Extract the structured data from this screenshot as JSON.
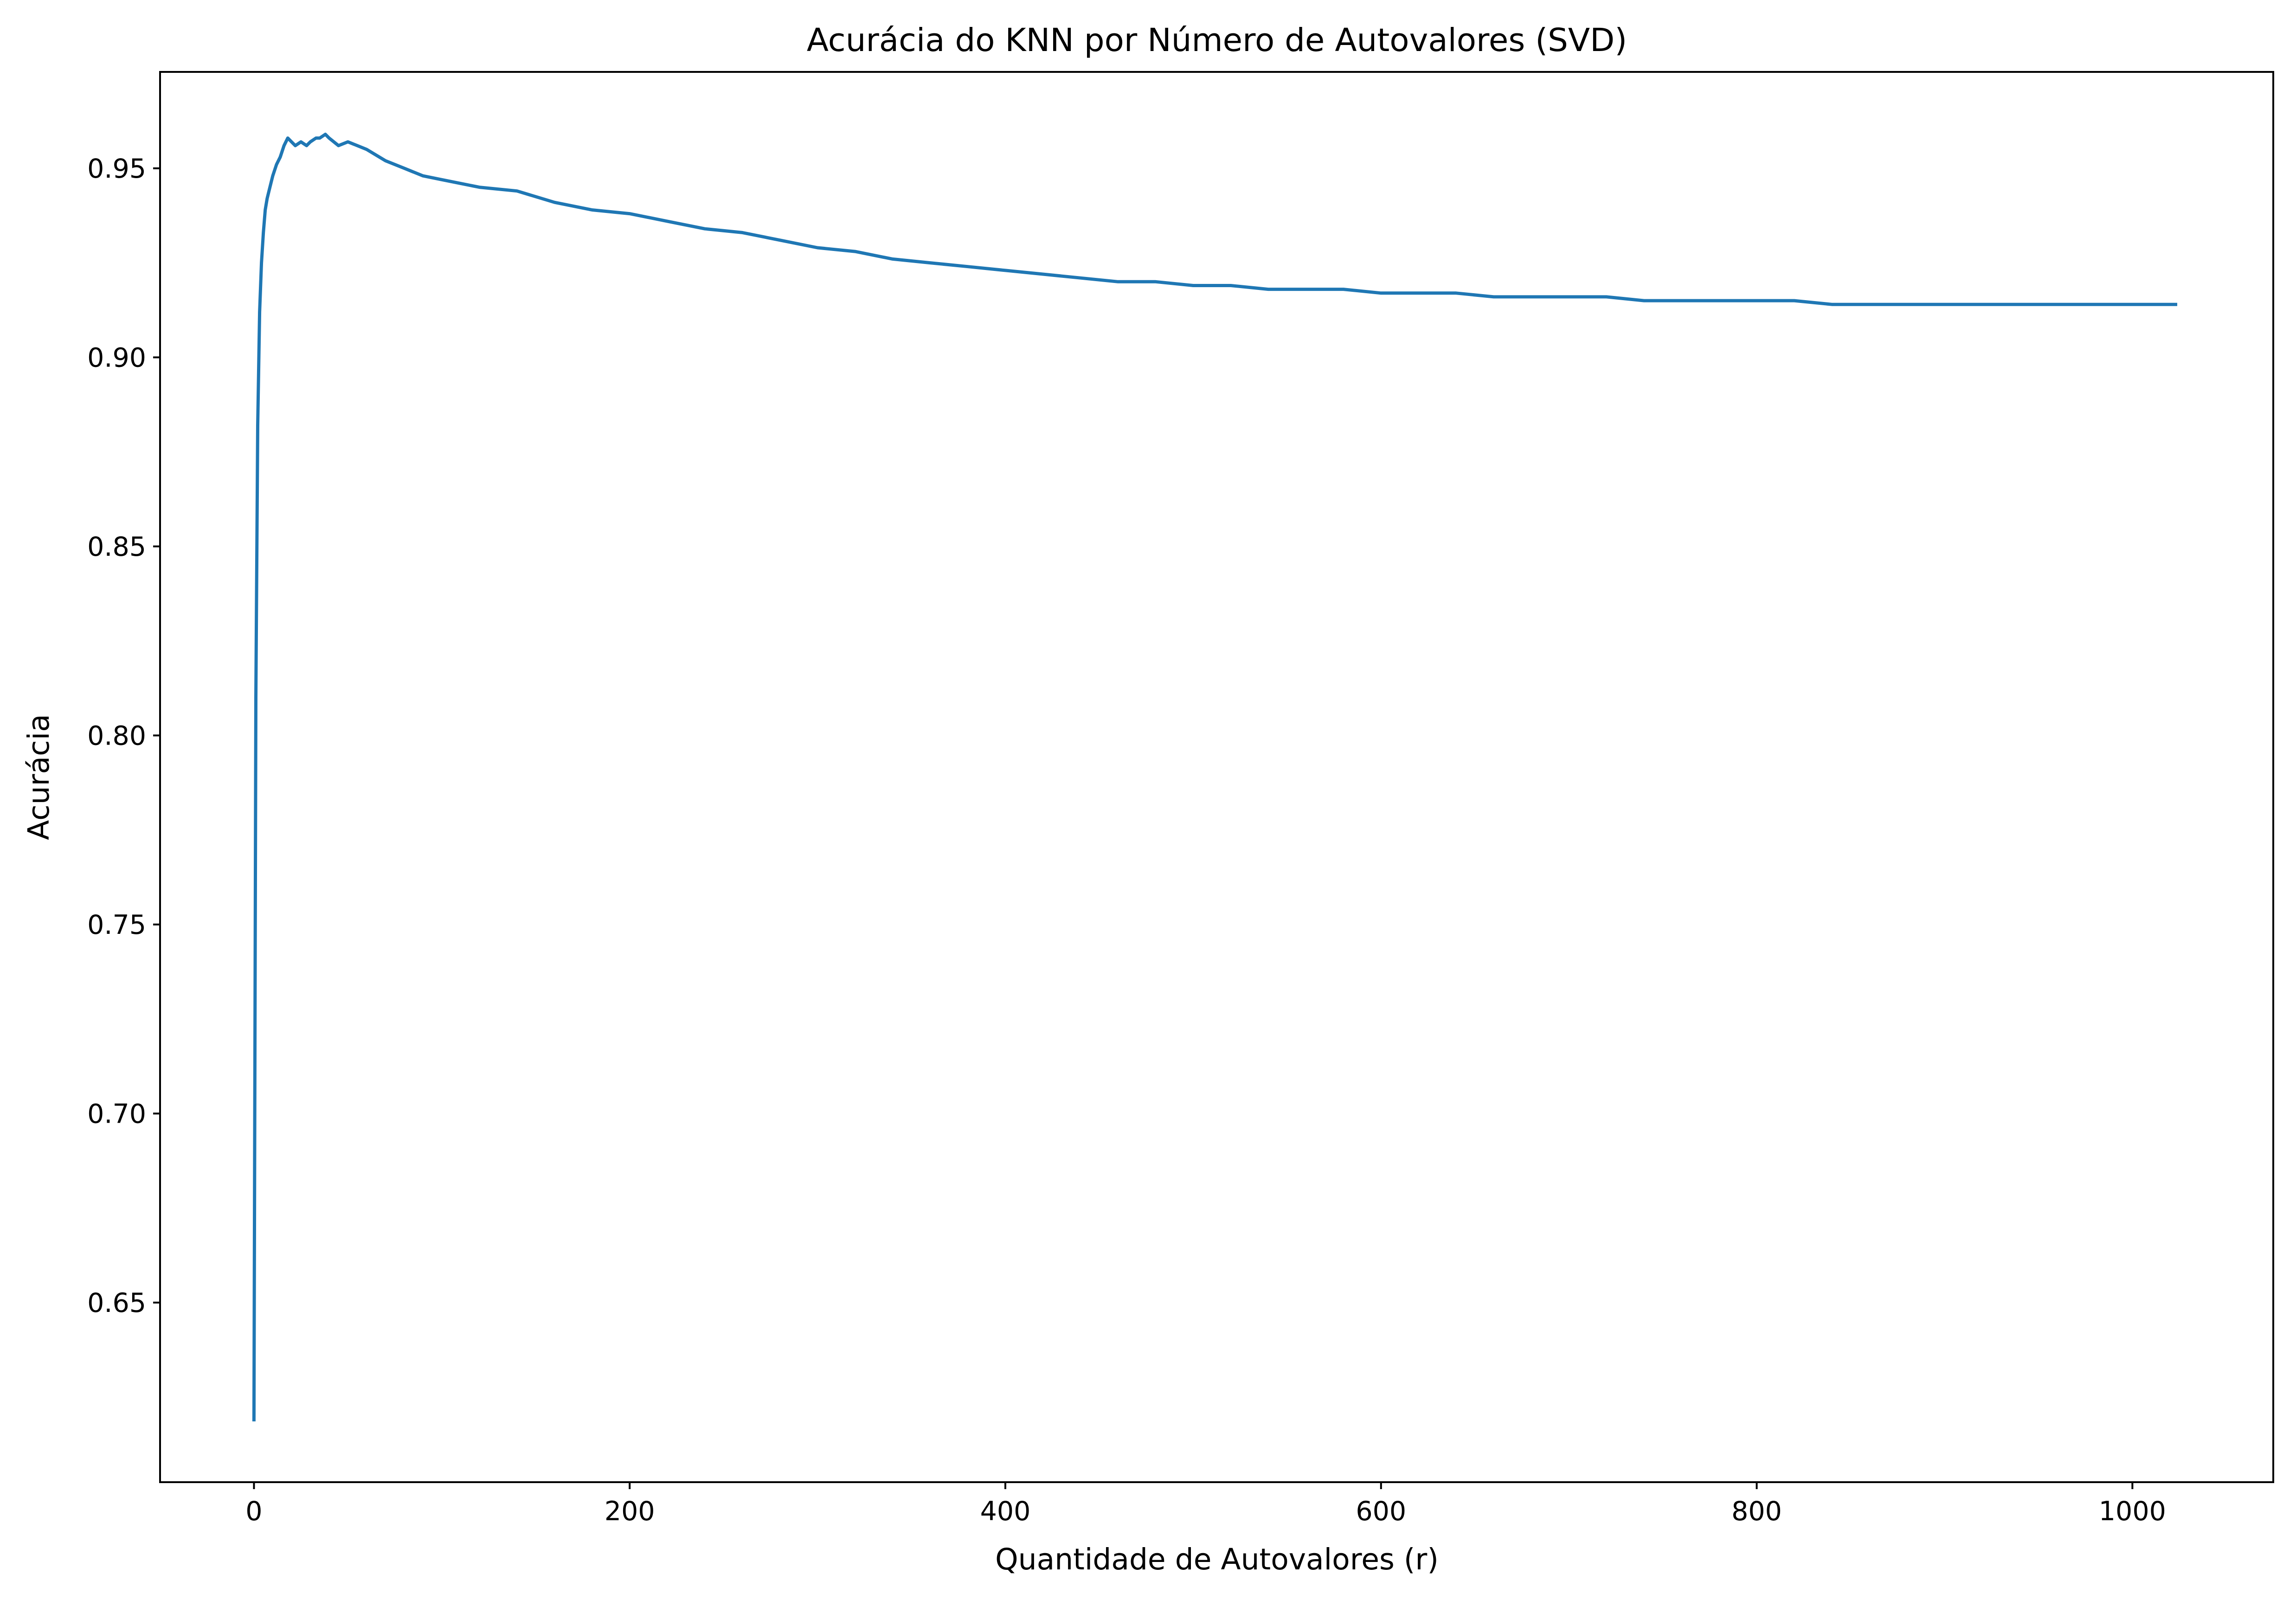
{
  "chart_data": {
    "type": "line",
    "title": "Acurácia do KNN por Número de Autovalores (SVD)",
    "xlabel": "Quantidade de Autovalores (r)",
    "ylabel": "Acurácia",
    "xlim": [
      -50,
      1075
    ],
    "ylim": [
      0.6025,
      0.9755
    ],
    "xticks": [
      0,
      200,
      400,
      600,
      800,
      1000
    ],
    "xtick_labels": [
      "0",
      "200",
      "400",
      "600",
      "800",
      "1000"
    ],
    "yticks": [
      0.65,
      0.7,
      0.75,
      0.8,
      0.85,
      0.9,
      0.95
    ],
    "ytick_labels": [
      "0.65",
      "0.70",
      "0.75",
      "0.80",
      "0.85",
      "0.90",
      "0.95"
    ],
    "grid": false,
    "line_color": "#1f77b4",
    "series": [
      {
        "x": [
          0,
          1,
          2,
          3,
          4,
          5,
          6,
          7,
          8,
          10,
          12,
          14,
          16,
          18,
          20,
          22,
          25,
          28,
          30,
          33,
          35,
          38,
          40,
          45,
          50,
          55,
          60,
          70,
          80,
          90,
          100,
          120,
          140,
          160,
          180,
          200,
          220,
          240,
          260,
          280,
          300,
          320,
          340,
          360,
          380,
          400,
          420,
          440,
          460,
          480,
          500,
          520,
          540,
          560,
          580,
          600,
          620,
          640,
          660,
          680,
          700,
          720,
          740,
          760,
          780,
          800,
          820,
          840,
          860,
          880,
          900,
          920,
          940,
          960,
          980,
          1000,
          1023
        ],
        "y": [
          0.619,
          0.81,
          0.882,
          0.912,
          0.925,
          0.933,
          0.939,
          0.942,
          0.944,
          0.948,
          0.951,
          0.953,
          0.956,
          0.958,
          0.957,
          0.956,
          0.957,
          0.956,
          0.957,
          0.958,
          0.958,
          0.959,
          0.958,
          0.956,
          0.957,
          0.956,
          0.955,
          0.952,
          0.95,
          0.948,
          0.947,
          0.945,
          0.944,
          0.941,
          0.939,
          0.938,
          0.936,
          0.934,
          0.933,
          0.931,
          0.929,
          0.928,
          0.926,
          0.925,
          0.924,
          0.923,
          0.922,
          0.921,
          0.92,
          0.92,
          0.919,
          0.919,
          0.918,
          0.918,
          0.918,
          0.917,
          0.917,
          0.917,
          0.916,
          0.916,
          0.916,
          0.916,
          0.915,
          0.915,
          0.915,
          0.915,
          0.915,
          0.914,
          0.914,
          0.914,
          0.914,
          0.914,
          0.914,
          0.914,
          0.914,
          0.914,
          0.914
        ]
      }
    ]
  }
}
